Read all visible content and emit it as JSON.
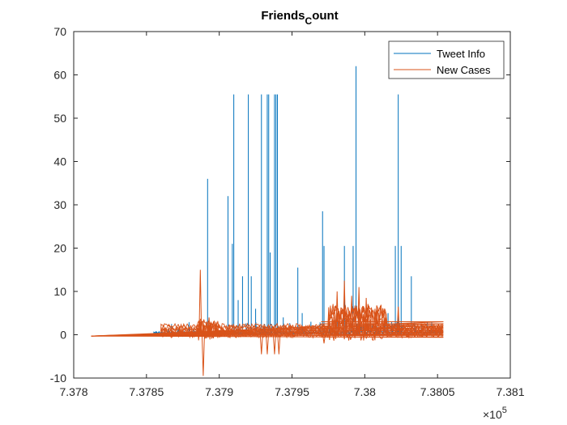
{
  "chart_data": {
    "type": "line",
    "title": "Friends",
    "title_subscript": "C",
    "title_suffix": "ount",
    "xlim": [
      7.378,
      7.381
    ],
    "ylim": [
      -10,
      70
    ],
    "x_ticks": [
      "7.378",
      "7.3785",
      "7.379",
      "7.3795",
      "7.38",
      "7.3805",
      "7.381"
    ],
    "y_ticks": [
      "-10",
      "0",
      "10",
      "20",
      "30",
      "40",
      "50",
      "60",
      "70"
    ],
    "x_tick_values": [
      7.378,
      7.3785,
      7.379,
      7.3795,
      7.38,
      7.3805,
      7.381
    ],
    "y_tick_values": [
      -10,
      0,
      10,
      20,
      30,
      40,
      50,
      60,
      70
    ],
    "x_exponent_base": "×10",
    "x_exponent_power": "5",
    "grid": false,
    "legend_position": "top-right",
    "series": [
      {
        "name": "Tweet Info",
        "color": "#0072BD",
        "spikes": [
          [
            7.37892,
            36
          ],
          [
            7.37906,
            32
          ],
          [
            7.37909,
            21
          ],
          [
            7.3791,
            55.5
          ],
          [
            7.37913,
            8
          ],
          [
            7.37916,
            13.5
          ],
          [
            7.3792,
            55.5
          ],
          [
            7.37922,
            13.5
          ],
          [
            7.37925,
            6
          ],
          [
            7.37929,
            55.5
          ],
          [
            7.37933,
            55.5
          ],
          [
            7.37934,
            55.5
          ],
          [
            7.37935,
            19
          ],
          [
            7.37938,
            55.5
          ],
          [
            7.37939,
            55.5
          ],
          [
            7.3794,
            55.5
          ],
          [
            7.37944,
            4
          ],
          [
            7.37954,
            15.5
          ],
          [
            7.37957,
            5
          ],
          [
            7.37963,
            3
          ],
          [
            7.37971,
            28.5
          ],
          [
            7.37972,
            20.5
          ],
          [
            7.37981,
            5
          ],
          [
            7.37986,
            20.5
          ],
          [
            7.37992,
            20.5
          ],
          [
            7.37994,
            62
          ],
          [
            7.37996,
            6
          ],
          [
            7.38004,
            3
          ],
          [
            7.38016,
            5
          ],
          [
            7.38021,
            20.5
          ],
          [
            7.38023,
            55.5
          ],
          [
            7.38025,
            20.5
          ],
          [
            7.38032,
            13.5
          ]
        ]
      },
      {
        "name": "New Cases",
        "color": "#D95319",
        "band_x": [
          7.37812,
          7.38054
        ],
        "spikes": [
          [
            7.37887,
            15
          ],
          [
            7.37889,
            -9.5
          ],
          [
            7.37893,
            4
          ],
          [
            7.37929,
            -4.5
          ],
          [
            7.37933,
            -4.5
          ],
          [
            7.37938,
            -4.5
          ],
          [
            7.37941,
            -4.5
          ],
          [
            7.37972,
            -2
          ],
          [
            7.37981,
            10
          ],
          [
            7.37986,
            12.5
          ],
          [
            7.37991,
            9
          ],
          [
            7.37996,
            11
          ],
          [
            7.38001,
            8.5
          ],
          [
            7.38007,
            6
          ],
          [
            7.38023,
            6.5
          ]
        ]
      }
    ]
  }
}
